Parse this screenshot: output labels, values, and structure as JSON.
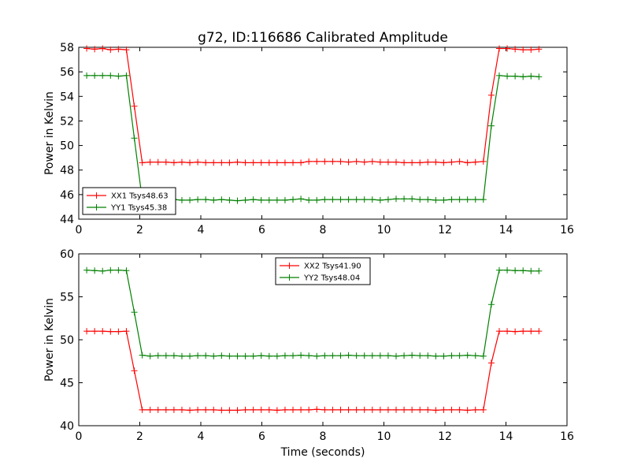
{
  "figure": {
    "title": "g72, ID:116686 Calibrated Amplitude",
    "xlabel": "Time (seconds)"
  },
  "chart_data": [
    {
      "type": "line",
      "title": "g72, ID:116686 Calibrated Amplitude",
      "xlabel": "",
      "ylabel": "Power in Kelvin",
      "xlim": [
        0,
        16
      ],
      "ylim": [
        44,
        58
      ],
      "xticks": [
        "0",
        "2",
        "4",
        "6",
        "8",
        "10",
        "12",
        "14",
        "16"
      ],
      "yticks": [
        "44",
        "46",
        "48",
        "50",
        "52",
        "54",
        "56",
        "58"
      ],
      "grid": false,
      "legend": "bottom-left",
      "x": [
        0.26,
        0.52,
        0.78,
        1.04,
        1.3,
        1.56,
        1.82,
        2.08,
        2.34,
        2.6,
        2.86,
        3.12,
        3.38,
        3.64,
        3.9,
        4.16,
        4.42,
        4.68,
        4.94,
        5.2,
        5.46,
        5.72,
        5.98,
        6.24,
        6.5,
        6.76,
        7.02,
        7.28,
        7.54,
        7.8,
        8.06,
        8.32,
        8.58,
        8.84,
        9.1,
        9.36,
        9.62,
        9.88,
        10.14,
        10.4,
        10.66,
        10.92,
        11.18,
        11.44,
        11.7,
        11.96,
        12.22,
        12.48,
        12.74,
        13.0,
        13.26,
        13.52,
        13.78,
        14.04,
        14.3,
        14.56,
        14.82,
        15.08
      ],
      "series": [
        {
          "name": "XX1 Tsys48.63",
          "color": "#ff0000",
          "values": [
            57.9,
            57.85,
            57.9,
            57.8,
            57.85,
            57.8,
            53.2,
            48.6,
            48.65,
            48.65,
            48.65,
            48.6,
            48.65,
            48.6,
            48.65,
            48.6,
            48.6,
            48.6,
            48.6,
            48.65,
            48.6,
            48.6,
            48.6,
            48.6,
            48.6,
            48.6,
            48.6,
            48.6,
            48.7,
            48.7,
            48.7,
            48.7,
            48.7,
            48.65,
            48.7,
            48.65,
            48.7,
            48.65,
            48.65,
            48.65,
            48.6,
            48.6,
            48.6,
            48.65,
            48.65,
            48.6,
            48.65,
            48.7,
            48.6,
            48.65,
            48.7,
            54.1,
            57.9,
            57.9,
            57.85,
            57.8,
            57.8,
            57.85
          ]
        },
        {
          "name": "YY1 Tsys45.38",
          "color": "#008000",
          "values": [
            55.7,
            55.7,
            55.7,
            55.7,
            55.65,
            55.7,
            50.6,
            45.6,
            45.6,
            45.6,
            45.6,
            45.6,
            45.55,
            45.55,
            45.6,
            45.6,
            45.55,
            45.6,
            45.55,
            45.5,
            45.55,
            45.6,
            45.55,
            45.55,
            45.55,
            45.55,
            45.6,
            45.65,
            45.55,
            45.55,
            45.6,
            45.6,
            45.6,
            45.6,
            45.6,
            45.6,
            45.6,
            45.55,
            45.6,
            45.65,
            45.65,
            45.65,
            45.6,
            45.6,
            45.55,
            45.55,
            45.6,
            45.6,
            45.6,
            45.6,
            45.6,
            51.6,
            55.7,
            55.65,
            55.65,
            55.6,
            55.65,
            55.6
          ]
        }
      ]
    },
    {
      "type": "line",
      "title": "",
      "xlabel": "Time (seconds)",
      "ylabel": "Power in Kelvin",
      "xlim": [
        0,
        16
      ],
      "ylim": [
        40,
        60
      ],
      "xticks": [
        "0",
        "2",
        "4",
        "6",
        "8",
        "10",
        "12",
        "14",
        "16"
      ],
      "yticks": [
        "40",
        "45",
        "50",
        "55",
        "60"
      ],
      "grid": false,
      "legend": "top-center",
      "x": [
        0.26,
        0.52,
        0.78,
        1.04,
        1.3,
        1.56,
        1.82,
        2.08,
        2.34,
        2.6,
        2.86,
        3.12,
        3.38,
        3.64,
        3.9,
        4.16,
        4.42,
        4.68,
        4.94,
        5.2,
        5.46,
        5.72,
        5.98,
        6.24,
        6.5,
        6.76,
        7.02,
        7.28,
        7.54,
        7.8,
        8.06,
        8.32,
        8.58,
        8.84,
        9.1,
        9.36,
        9.62,
        9.88,
        10.14,
        10.4,
        10.66,
        10.92,
        11.18,
        11.44,
        11.7,
        11.96,
        12.22,
        12.48,
        12.74,
        13.0,
        13.26,
        13.52,
        13.78,
        14.04,
        14.3,
        14.56,
        14.82,
        15.08
      ],
      "series": [
        {
          "name": "XX2 Tsys41.90",
          "color": "#ff0000",
          "values": [
            51.0,
            51.0,
            51.0,
            50.95,
            50.95,
            51.0,
            46.4,
            41.85,
            41.85,
            41.85,
            41.85,
            41.85,
            41.85,
            41.8,
            41.85,
            41.85,
            41.85,
            41.8,
            41.8,
            41.8,
            41.85,
            41.85,
            41.85,
            41.85,
            41.8,
            41.85,
            41.85,
            41.85,
            41.85,
            41.9,
            41.85,
            41.85,
            41.85,
            41.85,
            41.85,
            41.85,
            41.85,
            41.85,
            41.85,
            41.85,
            41.85,
            41.85,
            41.85,
            41.85,
            41.8,
            41.85,
            41.85,
            41.85,
            41.8,
            41.85,
            41.85,
            47.3,
            51.0,
            51.0,
            50.95,
            51.0,
            51.0,
            51.0
          ]
        },
        {
          "name": "YY2 Tsys48.04",
          "color": "#008000",
          "values": [
            58.1,
            58.05,
            58.0,
            58.1,
            58.1,
            58.05,
            53.2,
            48.2,
            48.1,
            48.15,
            48.15,
            48.15,
            48.1,
            48.1,
            48.15,
            48.15,
            48.1,
            48.15,
            48.1,
            48.1,
            48.1,
            48.1,
            48.15,
            48.1,
            48.1,
            48.15,
            48.15,
            48.2,
            48.15,
            48.1,
            48.15,
            48.15,
            48.15,
            48.2,
            48.15,
            48.15,
            48.15,
            48.15,
            48.15,
            48.1,
            48.15,
            48.2,
            48.15,
            48.15,
            48.1,
            48.1,
            48.15,
            48.15,
            48.2,
            48.15,
            48.1,
            54.1,
            58.1,
            58.1,
            58.05,
            58.05,
            58.0,
            58.0
          ]
        }
      ]
    }
  ]
}
